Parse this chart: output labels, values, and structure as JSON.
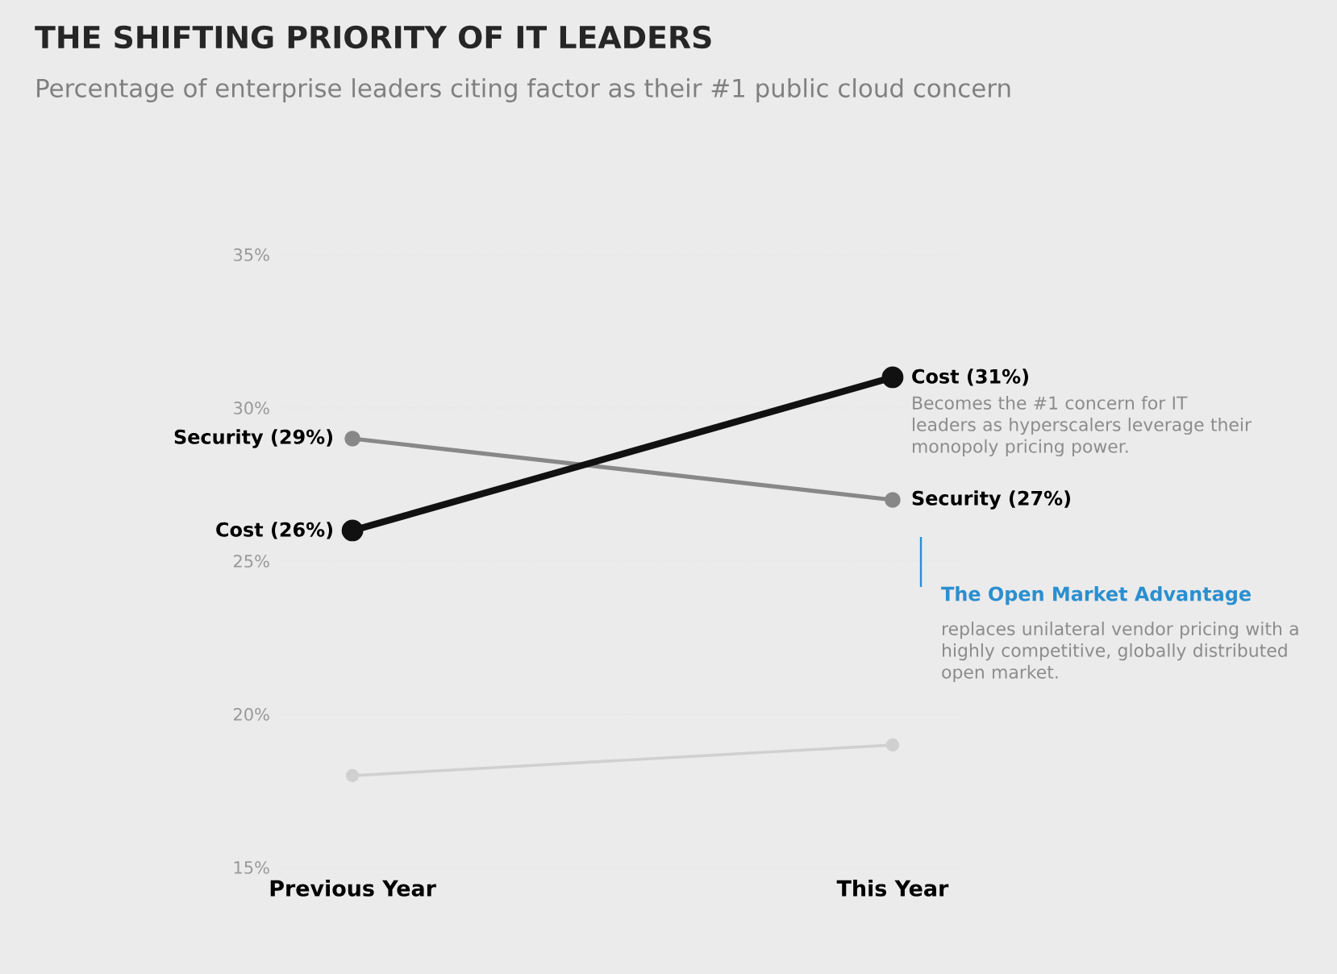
{
  "chart_data": {
    "type": "line",
    "title": "THE SHIFTING PRIORITY OF IT LEADERS",
    "subtitle": "Percentage of enterprise leaders citing factor as their #1 public cloud concern",
    "categories": [
      "Previous Year",
      "This Year"
    ],
    "series": [
      {
        "color": "#888888",
        "values": [
          29,
          27
        ],
        "value_labels": [
          "Security (29%)",
          "Security (27%)"
        ]
      },
      {
        "color": "#111111",
        "values": [
          26,
          31
        ],
        "value_labels": [
          "Cost (26%)",
          "Cost (31%)"
        ]
      },
      {
        "color": "#d0d0d0",
        "values": [
          18,
          19
        ]
      }
    ],
    "ylim": [
      15,
      35
    ],
    "yticks": [
      {
        "value": 15,
        "label": "15%"
      },
      {
        "value": 20,
        "label": "20%"
      },
      {
        "value": 25,
        "label": "25%"
      },
      {
        "value": 30,
        "label": "30%"
      },
      {
        "value": 35,
        "label": "35%"
      }
    ],
    "grid": "y",
    "marker": "circle",
    "line_style": "solid",
    "annotations": [
      {
        "text": "Becomes the #1 concern for IT leaders as hyperscalers leverage their monopoly pricing power.",
        "x": "This Year",
        "y": 31
      },
      "The Open Market Advantage",
      "replaces unilateral vendor pricing with a highly competitive, globally distributed open market."
    ]
  }
}
